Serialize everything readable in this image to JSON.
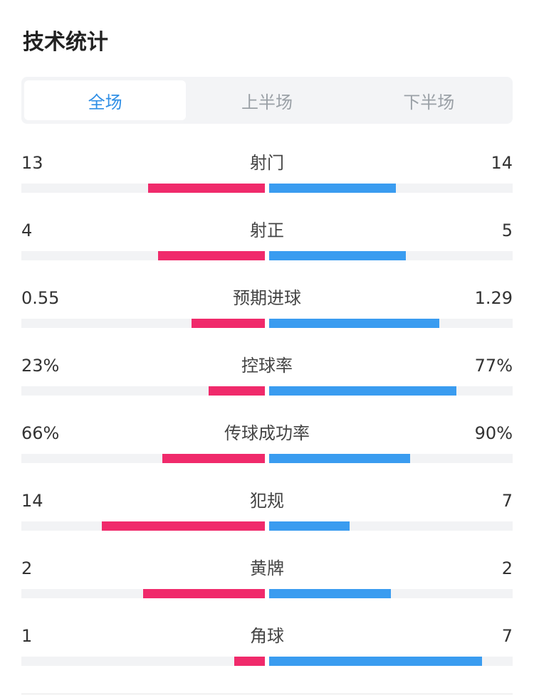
{
  "header": {
    "title": "技术统计"
  },
  "tabs": [
    {
      "label": "全场",
      "active": true
    },
    {
      "label": "上半场",
      "active": false
    },
    {
      "label": "下半场",
      "active": false
    }
  ],
  "colors": {
    "home": "#f02a6b",
    "away": "#3a9cf0",
    "accent": "#2f8fe6",
    "track": "#f2f3f5"
  },
  "stats": [
    {
      "label": "射门",
      "left": "13",
      "right": "14",
      "left_fill": 0.48,
      "right_fill": 0.52
    },
    {
      "label": "射正",
      "left": "4",
      "right": "5",
      "left_fill": 0.44,
      "right_fill": 0.56
    },
    {
      "label": "预期进球",
      "left": "0.55",
      "right": "1.29",
      "left_fill": 0.3,
      "right_fill": 0.7
    },
    {
      "label": "控球率",
      "left": "23%",
      "right": "77%",
      "left_fill": 0.23,
      "right_fill": 0.77
    },
    {
      "label": "传球成功率",
      "left": "66%",
      "right": "90%",
      "left_fill": 0.42,
      "right_fill": 0.58
    },
    {
      "label": "犯规",
      "left": "14",
      "right": "7",
      "left_fill": 0.67,
      "right_fill": 0.33
    },
    {
      "label": "黄牌",
      "left": "2",
      "right": "2",
      "left_fill": 0.5,
      "right_fill": 0.5
    },
    {
      "label": "角球",
      "left": "1",
      "right": "7",
      "left_fill": 0.125,
      "right_fill": 0.875
    }
  ]
}
